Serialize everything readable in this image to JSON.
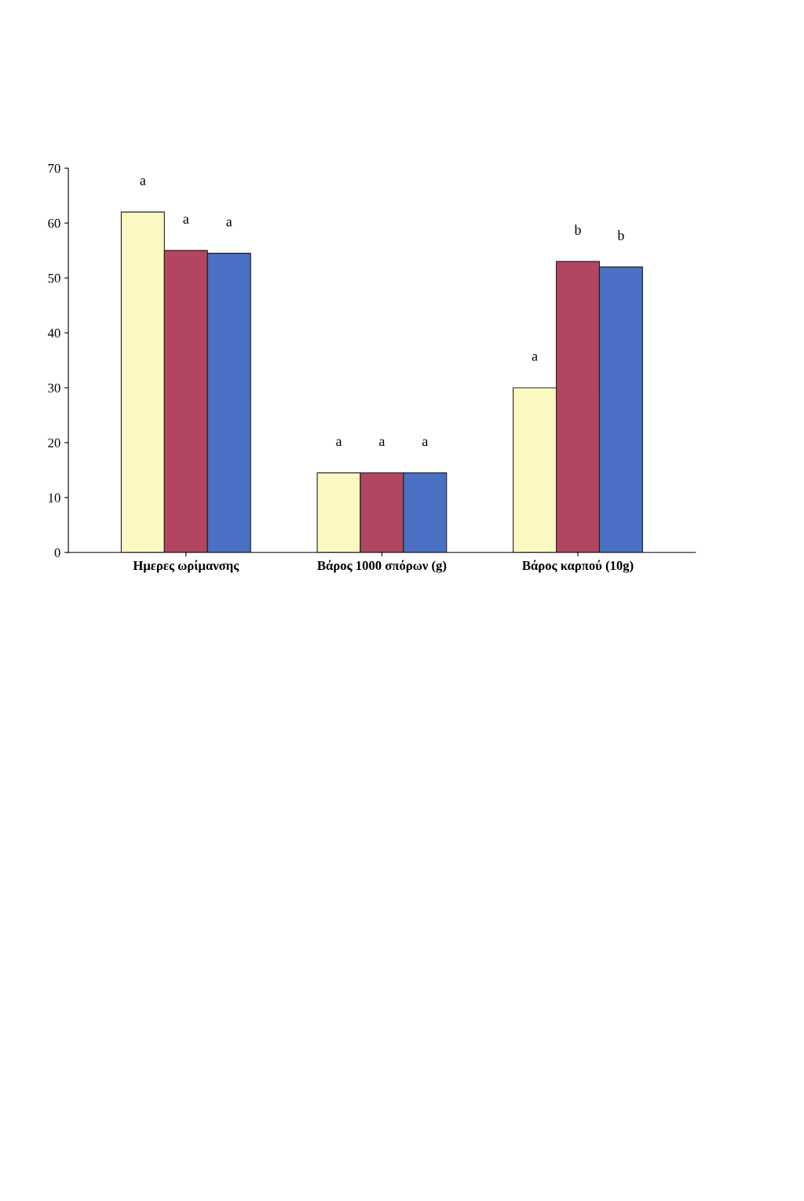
{
  "chart_data": {
    "type": "bar",
    "categories": [
      "Ημερες ωρίμανσης",
      "Βάρος 1000 σπόρων (g)",
      "Βάρος καρπού (10g)"
    ],
    "series": [
      {
        "color": "#fbf8c2",
        "values": [
          62,
          14.5,
          30
        ],
        "value_labels": [
          "a",
          "a",
          "a"
        ]
      },
      {
        "color": "#b24660",
        "values": [
          55,
          14.5,
          53
        ],
        "value_labels": [
          "a",
          "a",
          "b"
        ]
      },
      {
        "color": "#4a70c4",
        "values": [
          54.5,
          14.5,
          52
        ],
        "value_labels": [
          "a",
          "a",
          "b"
        ]
      }
    ],
    "ylim": [
      0,
      70
    ],
    "yticks": [
      0,
      10,
      20,
      30,
      40,
      50,
      60,
      70
    ],
    "grid": false
  }
}
